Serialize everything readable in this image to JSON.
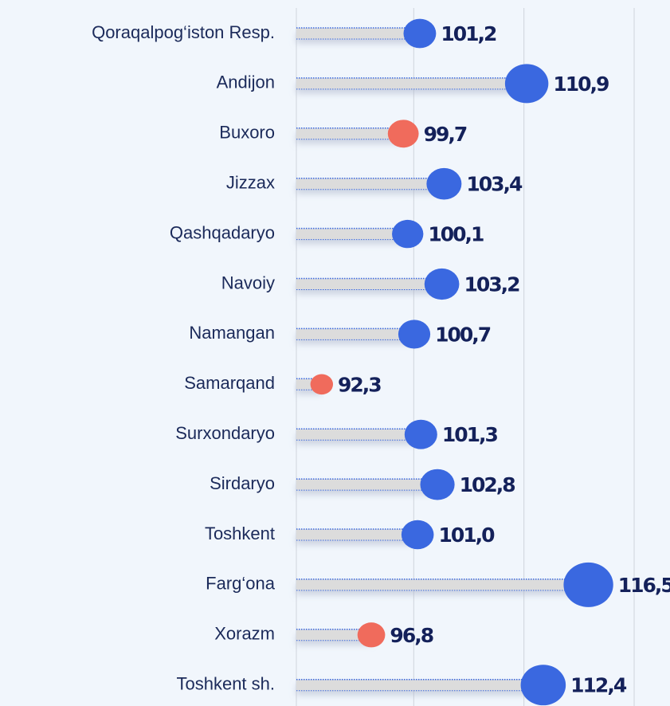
{
  "chart_data": {
    "type": "lollipop",
    "categories": [
      "Qoraqalpog‘iston Resp.",
      "Andijon",
      "Buxoro",
      "Jizzax",
      "Qashqadaryo",
      "Navoiy",
      "Namangan",
      "Samarqand",
      "Surxondaryo",
      "Sirdaryo",
      "Toshkent",
      "Farg‘ona",
      "Xorazm",
      "Toshkent sh."
    ],
    "values": [
      101.2,
      110.9,
      99.7,
      103.4,
      100.1,
      103.2,
      100.7,
      92.3,
      101.3,
      102.8,
      101.0,
      116.5,
      96.8,
      112.4
    ],
    "value_labels": [
      "101,2",
      "110,9",
      "99,7",
      "103,4",
      "100,1",
      "103,2",
      "100,7",
      "92,3",
      "101,3",
      "102,8",
      "101,0",
      "116,5",
      "96,8",
      "112,4"
    ],
    "colors": [
      "#3a68e0",
      "#3a68e0",
      "#f06b5c",
      "#3a68e0",
      "#3a68e0",
      "#3a68e0",
      "#3a68e0",
      "#f06b5c",
      "#3a68e0",
      "#3a68e0",
      "#3a68e0",
      "#3a68e0",
      "#f06b5c",
      "#3a68e0"
    ],
    "xlim": [
      90,
      120
    ],
    "xticks": [
      90,
      100,
      110,
      120
    ],
    "grid": true
  }
}
